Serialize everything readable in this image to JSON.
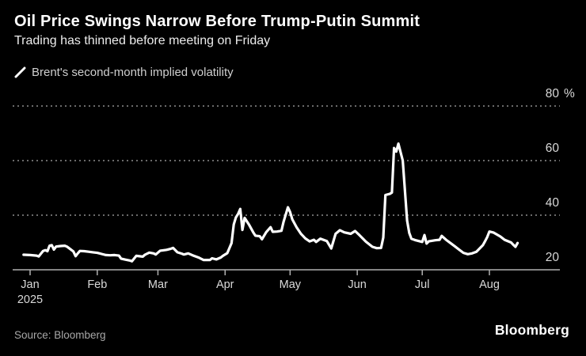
{
  "header": {
    "title": "Oil Price Swings Narrow Before Trump-Putin Summit",
    "subtitle": "Trading has thinned before meeting on Friday"
  },
  "legend": {
    "label": "Brent's second-month implied volatility",
    "marker_color": "#ffffff"
  },
  "footer": {
    "source": "Source: Bloomberg",
    "logo": "Bloomberg"
  },
  "colors": {
    "background": "#000000",
    "line": "#ffffff",
    "grid_dotted": "#6b6b6b",
    "axis": "#b0b0b0",
    "axis_labels": "#d9d9d9"
  },
  "chart_data": {
    "type": "line",
    "title": "Oil Price Swings Narrow Before Trump-Putin Summit",
    "subtitle": "Trading has thinned before meeting on Friday",
    "xlabel": "",
    "ylabel": "%",
    "x_unit": "days since 2025-01-01 (Jan-Aug 2025, daily)",
    "xlim_days": [
      -4,
      227
    ],
    "ylim": [
      20,
      80
    ],
    "grid": "horizontal dotted gridlines at 40/60/80, solid baseline at 20",
    "legend_position": "top-left",
    "y_ticks": [
      {
        "value": 80,
        "label": "80",
        "unit": "%"
      },
      {
        "value": 60,
        "label": "60"
      },
      {
        "value": 40,
        "label": "40"
      },
      {
        "value": 20,
        "label": "20",
        "baseline": true
      }
    ],
    "x_ticks": [
      {
        "day": 0,
        "label": "Jan",
        "sublabel": "2025"
      },
      {
        "day": 31,
        "label": "Feb"
      },
      {
        "day": 59,
        "label": "Mar"
      },
      {
        "day": 90,
        "label": "Apr"
      },
      {
        "day": 120,
        "label": "May"
      },
      {
        "day": 151,
        "label": "Jun"
      },
      {
        "day": 181,
        "label": "Jul"
      },
      {
        "day": 212,
        "label": "Aug"
      }
    ],
    "series": [
      {
        "name": "Brent's second-month implied volatility",
        "color": "#ffffff",
        "points": [
          [
            -3,
            25.5
          ],
          [
            0,
            25.4
          ],
          [
            3,
            25.2
          ],
          [
            4,
            24.9
          ],
          [
            6,
            26.9
          ],
          [
            7,
            27.2
          ],
          [
            8,
            26.8
          ],
          [
            9,
            28.8
          ],
          [
            10,
            29.0
          ],
          [
            11,
            27.4
          ],
          [
            12,
            28.5
          ],
          [
            14,
            28.7
          ],
          [
            16,
            28.8
          ],
          [
            17,
            28.5
          ],
          [
            18,
            27.9
          ],
          [
            20,
            26.7
          ],
          [
            21,
            25.0
          ],
          [
            22,
            26.0
          ],
          [
            23,
            26.9
          ],
          [
            25,
            26.8
          ],
          [
            27,
            26.6
          ],
          [
            29,
            26.4
          ],
          [
            31,
            26.2
          ],
          [
            33,
            25.8
          ],
          [
            35,
            25.4
          ],
          [
            37,
            25.3
          ],
          [
            39,
            25.4
          ],
          [
            41,
            25.2
          ],
          [
            42,
            24.1
          ],
          [
            44,
            23.7
          ],
          [
            46,
            23.4
          ],
          [
            47,
            23.1
          ],
          [
            49,
            25.1
          ],
          [
            52,
            24.8
          ],
          [
            53,
            25.5
          ],
          [
            55,
            26.3
          ],
          [
            57,
            26.0
          ],
          [
            58,
            25.6
          ],
          [
            60,
            27.0
          ],
          [
            63,
            27.3
          ],
          [
            65,
            27.7
          ],
          [
            66,
            28.0
          ],
          [
            68,
            26.4
          ],
          [
            70,
            25.9
          ],
          [
            71,
            25.6
          ],
          [
            73,
            26.0
          ],
          [
            75,
            25.3
          ],
          [
            78,
            24.4
          ],
          [
            80,
            23.6
          ],
          [
            83,
            23.6
          ],
          [
            84,
            24.2
          ],
          [
            86,
            23.8
          ],
          [
            88,
            24.5
          ],
          [
            89,
            25.1
          ],
          [
            91,
            26.1
          ],
          [
            93,
            29.8
          ],
          [
            94,
            36.6
          ],
          [
            95,
            39.2
          ],
          [
            96,
            40.5
          ],
          [
            97,
            42.3
          ],
          [
            98,
            34.6
          ],
          [
            99,
            39.0
          ],
          [
            101,
            36.6
          ],
          [
            103,
            33.7
          ],
          [
            104,
            32.5
          ],
          [
            106,
            32.3
          ],
          [
            107,
            31.2
          ],
          [
            109,
            33.8
          ],
          [
            111,
            35.6
          ],
          [
            112,
            33.9
          ],
          [
            114,
            34.0
          ],
          [
            116,
            34.3
          ],
          [
            117,
            37.6
          ],
          [
            118,
            40.2
          ],
          [
            119,
            42.9
          ],
          [
            120,
            41.2
          ],
          [
            121,
            38.5
          ],
          [
            123,
            35.6
          ],
          [
            125,
            33.2
          ],
          [
            127,
            31.5
          ],
          [
            129,
            30.4
          ],
          [
            131,
            31.0
          ],
          [
            132,
            30.2
          ],
          [
            134,
            31.4
          ],
          [
            137,
            30.5
          ],
          [
            139,
            27.8
          ],
          [
            141,
            33.2
          ],
          [
            143,
            34.5
          ],
          [
            145,
            33.7
          ],
          [
            148,
            33.2
          ],
          [
            150,
            34.2
          ],
          [
            152,
            32.7
          ],
          [
            155,
            30.3
          ],
          [
            158,
            28.4
          ],
          [
            160,
            27.9
          ],
          [
            162,
            28.0
          ],
          [
            163,
            31.8
          ],
          [
            164,
            47.4
          ],
          [
            166,
            47.8
          ],
          [
            167,
            48.3
          ],
          [
            168,
            64.6
          ],
          [
            169,
            63.3
          ],
          [
            170,
            66.2
          ],
          [
            172,
            60.0
          ],
          [
            174,
            38.0
          ],
          [
            175,
            33.5
          ],
          [
            176,
            31.4
          ],
          [
            178,
            30.8
          ],
          [
            181,
            30.2
          ],
          [
            182,
            32.7
          ],
          [
            183,
            29.6
          ],
          [
            184,
            30.4
          ],
          [
            187,
            30.8
          ],
          [
            189,
            31.0
          ],
          [
            190,
            32.4
          ],
          [
            192,
            31.0
          ],
          [
            194,
            29.8
          ],
          [
            196,
            28.6
          ],
          [
            198,
            27.4
          ],
          [
            200,
            26.2
          ],
          [
            202,
            25.7
          ],
          [
            204,
            26.0
          ],
          [
            206,
            26.6
          ],
          [
            209,
            29.0
          ],
          [
            210,
            30.5
          ],
          [
            211,
            32.0
          ],
          [
            212,
            34.0
          ],
          [
            214,
            33.6
          ],
          [
            217,
            32.2
          ],
          [
            219,
            31.0
          ],
          [
            222,
            30.0
          ],
          [
            223,
            29.2
          ],
          [
            224,
            28.4
          ],
          [
            225,
            29.8
          ]
        ]
      }
    ]
  }
}
